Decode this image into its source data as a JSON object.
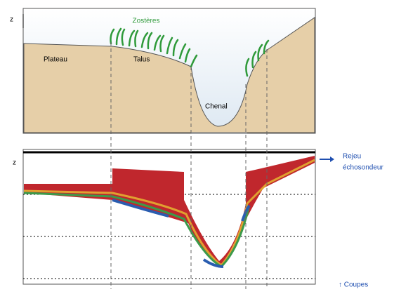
{
  "top": {
    "axis": "z",
    "labels": {
      "zosteres": "Zostères",
      "plateau": "Plateau",
      "talus": "Talus",
      "chenal": "Chenal"
    }
  },
  "bottom": {
    "axis": "z",
    "legend_lines": [
      "Rejeu",
      "échosondeur"
    ],
    "note": "↑ Coupes"
  }
}
